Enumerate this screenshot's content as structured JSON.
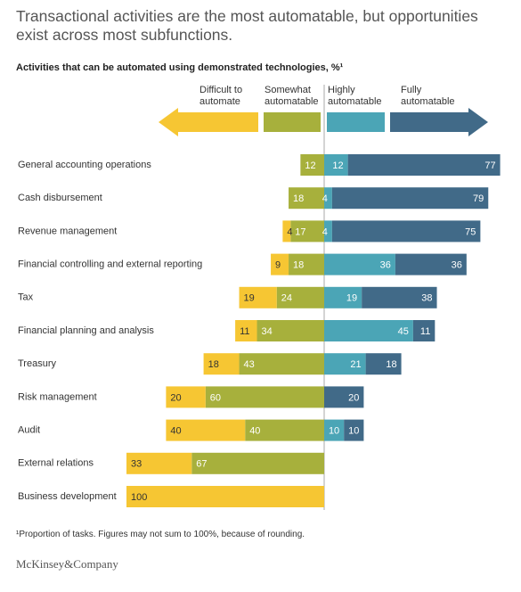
{
  "chart_data": {
    "type": "bar",
    "title": "Transactional activities are the most automatable, but opportunities exist across most subfunctions.",
    "subtitle": "Activities that can be automated using demonstrated technologies, %¹",
    "categories": [
      "General accounting operations",
      "Cash disbursement",
      "Revenue management",
      "Financial controlling and external reporting",
      "Tax",
      "Financial planning and analysis",
      "Treasury",
      "Risk management",
      "Audit",
      "External relations",
      "Business development"
    ],
    "series": [
      {
        "name": "Difficult to automate",
        "color": "#f6c633",
        "values": [
          null,
          null,
          4,
          9,
          19,
          11,
          18,
          20,
          40,
          33,
          100
        ]
      },
      {
        "name": "Somewhat automatable",
        "color": "#a7b03c",
        "values": [
          12,
          18,
          17,
          18,
          24,
          34,
          43,
          60,
          40,
          67,
          null
        ]
      },
      {
        "name": "Highly automatable",
        "color": "#4ba5b6",
        "values": [
          12,
          4,
          4,
          36,
          19,
          45,
          21,
          null,
          10,
          null,
          null
        ]
      },
      {
        "name": "Fully automatable",
        "color": "#416a88",
        "values": [
          77,
          79,
          75,
          36,
          38,
          11,
          18,
          20,
          10,
          null,
          null
        ]
      }
    ],
    "footnote": "¹Proportion of tasks. Figures may not sum to 100%, because of rounding.",
    "source": "McKinsey&Company"
  }
}
